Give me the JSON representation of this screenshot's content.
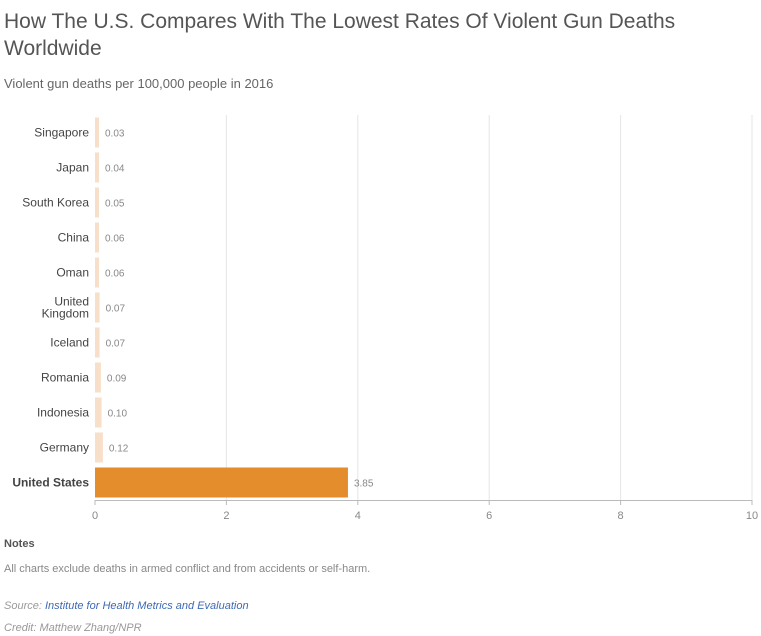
{
  "header": {
    "title": "How The U.S. Compares With The Lowest Rates Of Violent Gun Deaths Worldwide",
    "subtitle": "Violent gun deaths per 100,000 people in 2016"
  },
  "notes": {
    "heading": "Notes",
    "text": "All charts exclude deaths in armed conflict and from accidents or self-harm."
  },
  "source": {
    "prefix": "Source: ",
    "link_text": "Institute for Health Metrics and Evaluation"
  },
  "credit": "Credit: Matthew Zhang/NPR",
  "colors": {
    "light_bar": "#f7dfc9",
    "highlight_bar": "#e38d2c",
    "grid": "#e5e5e5"
  },
  "chart_data": {
    "type": "bar",
    "orientation": "horizontal",
    "categories": [
      "Singapore",
      "Japan",
      "South Korea",
      "China",
      "Oman",
      "United Kingdom",
      "Iceland",
      "Romania",
      "Indonesia",
      "Germany",
      "United States"
    ],
    "category_lines": [
      [
        "Singapore"
      ],
      [
        "Japan"
      ],
      [
        "South Korea"
      ],
      [
        "China"
      ],
      [
        "Oman"
      ],
      [
        "United",
        "Kingdom"
      ],
      [
        "Iceland"
      ],
      [
        "Romania"
      ],
      [
        "Indonesia"
      ],
      [
        "Germany"
      ],
      [
        "United States"
      ]
    ],
    "values": [
      0.03,
      0.04,
      0.05,
      0.06,
      0.06,
      0.07,
      0.07,
      0.09,
      0.1,
      0.12,
      3.85
    ],
    "value_labels": [
      "0.03",
      "0.04",
      "0.05",
      "0.06",
      "0.06",
      "0.07",
      "0.07",
      "0.09",
      "0.10",
      "0.12",
      "3.85"
    ],
    "highlight": "United States",
    "xlim": [
      0,
      10
    ],
    "xticks": [
      0,
      2,
      4,
      6,
      8,
      10
    ],
    "xtick_labels": [
      "0",
      "2",
      "4",
      "6",
      "8",
      "10"
    ],
    "grid": true
  }
}
